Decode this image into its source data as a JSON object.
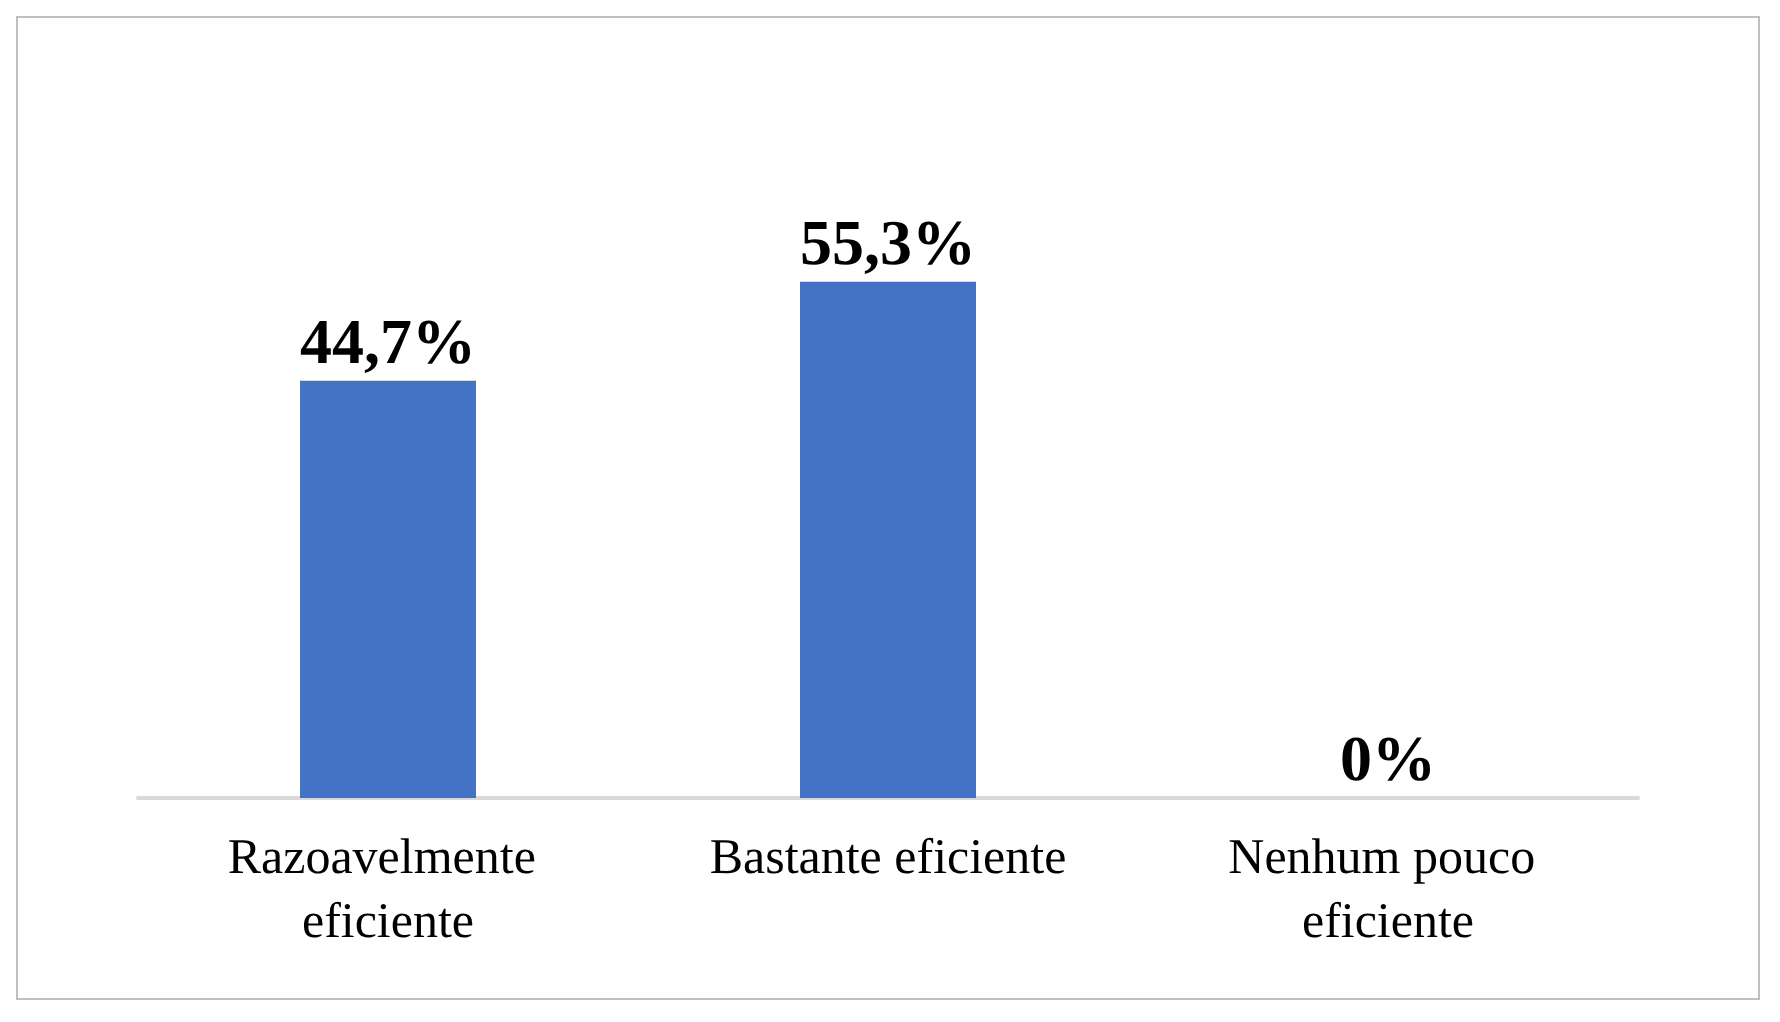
{
  "chart_data": {
    "type": "bar",
    "categories": [
      "Razoavelmente eficiente",
      "Bastante eficiente",
      "Nenhum pouco eficiente"
    ],
    "values": [
      44.7,
      55.3,
      0
    ],
    "value_labels": [
      "44,7%",
      "55,3%",
      "0%"
    ],
    "color": "#4472c4",
    "grid": false
  }
}
